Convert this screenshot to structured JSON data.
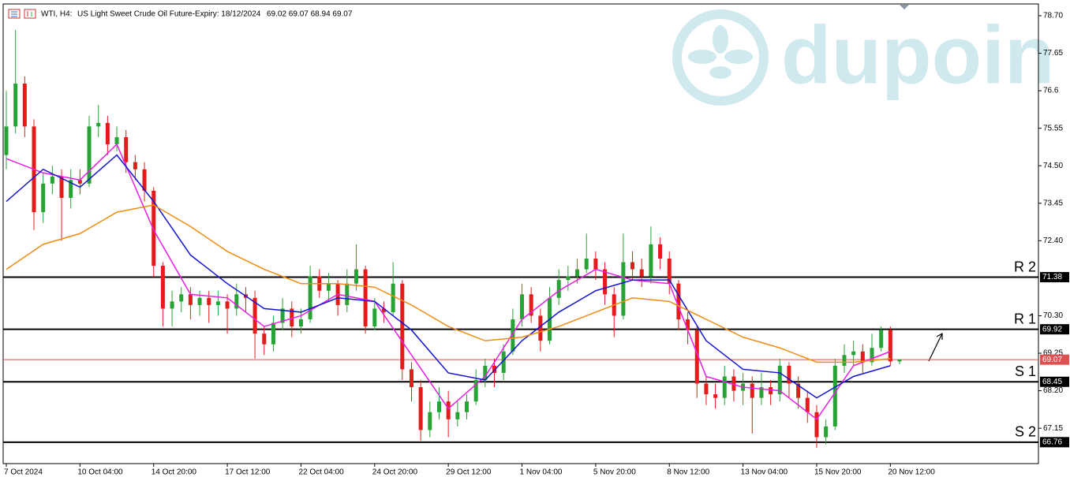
{
  "header": {
    "symbol": "WTI, H4:",
    "description": "US Light Sweet Crude Oil Future-Expiry: 18/12/2024",
    "ohlc": "69.02 69.07 68.94 69.07"
  },
  "watermark": "dupoin",
  "chart_data": {
    "type": "candlestick",
    "up_color": "#26a334",
    "down_color": "#e31b1b",
    "ylim": [
      66.16,
      79.03
    ],
    "yticks": [
      {
        "value": 78.7,
        "label": "78.70"
      },
      77.65,
      76.6,
      75.55,
      {
        "value": 74.5,
        "label": "74.50"
      },
      73.45,
      {
        "value": 72.4,
        "label": "72.40"
      },
      {
        "value": 70.3,
        "label": "70.30"
      },
      69.25,
      {
        "value": 68.2,
        "label": "68.20"
      },
      67.15
    ],
    "categories": [
      "7 Oct 2024",
      null,
      null,
      null,
      null,
      null,
      null,
      null,
      "10 Oct 04:00",
      null,
      null,
      null,
      null,
      null,
      null,
      null,
      "14 Oct 20:00",
      null,
      null,
      null,
      null,
      null,
      null,
      null,
      "17 Oct 12:00",
      null,
      null,
      null,
      null,
      null,
      null,
      null,
      "22 Oct 04:00",
      null,
      null,
      null,
      null,
      null,
      null,
      null,
      "24 Oct 20:00",
      null,
      null,
      null,
      null,
      null,
      null,
      null,
      "29 Oct 12:00",
      null,
      null,
      null,
      null,
      null,
      null,
      null,
      "1 Nov 04:00",
      null,
      null,
      null,
      null,
      null,
      null,
      null,
      "5 Nov 20:00",
      null,
      null,
      null,
      null,
      null,
      null,
      null,
      "8 Nov 12:00",
      null,
      null,
      null,
      null,
      null,
      null,
      null,
      "13 Nov 04:00",
      null,
      null,
      null,
      null,
      null,
      null,
      null,
      "15 Nov 20:00",
      null,
      null,
      null,
      null,
      null,
      null,
      null,
      "20 Nov 12:00",
      null
    ],
    "open": [
      74.8,
      75.6,
      76.8,
      75.6,
      73.2,
      74.0,
      74.2,
      73.6,
      74.1,
      74.0,
      75.6,
      75.7,
      75.1,
      75.3,
      74.6,
      74.4,
      73.8,
      71.7,
      70.5,
      70.7,
      70.9,
      70.6,
      70.8,
      70.6,
      70.7,
      70.5,
      70.9,
      70.8,
      69.8,
      69.5,
      70.1,
      70.5,
      70.0,
      70.2,
      71.4,
      71.0,
      71.2,
      70.6,
      71.2,
      71.6,
      70.0,
      70.5,
      70.4,
      71.2,
      68.8,
      68.3,
      67.1,
      67.6,
      67.9,
      67.4,
      67.6,
      67.9,
      68.5,
      68.9,
      68.7,
      69.3,
      70.2,
      70.9,
      70.3,
      69.6,
      70.8,
      71.3,
      71.4,
      71.6,
      71.9,
      71.6,
      70.9,
      70.3,
      71.8,
      71.6,
      71.4,
      72.3,
      71.9,
      71.2,
      70.2,
      69.9,
      68.4,
      68.1,
      68.0,
      68.6,
      68.2,
      68.4,
      68.0,
      68.3,
      68.1,
      68.9,
      68.4,
      68.0,
      67.6,
      66.9,
      67.2,
      68.9,
      69.2,
      69.3,
      69.0,
      69.4,
      69.9,
      69.02
    ],
    "high": [
      76.6,
      78.3,
      77.0,
      75.8,
      74.3,
      74.5,
      74.4,
      74.4,
      74.4,
      75.9,
      76.2,
      75.9,
      75.6,
      75.5,
      74.8,
      74.6,
      73.9,
      71.8,
      71.0,
      71.1,
      71.1,
      71.0,
      71.0,
      71.0,
      70.9,
      71.2,
      71.1,
      71.0,
      70.0,
      70.3,
      70.8,
      70.7,
      70.5,
      71.7,
      71.6,
      71.5,
      71.3,
      71.6,
      72.3,
      71.7,
      70.8,
      70.7,
      71.8,
      71.3,
      69.0,
      68.5,
      67.9,
      68.3,
      68.2,
      67.9,
      68.1,
      68.8,
      69.1,
      69.1,
      69.5,
      70.5,
      71.2,
      71.1,
      70.5,
      71.1,
      71.6,
      71.7,
      71.9,
      72.6,
      72.1,
      71.8,
      71.1,
      72.6,
      72.1,
      71.9,
      72.8,
      72.5,
      72.1,
      71.3,
      70.4,
      70.0,
      68.6,
      68.4,
      68.9,
      68.8,
      68.7,
      68.6,
      68.7,
      68.5,
      69.1,
      69.0,
      68.6,
      68.2,
      67.8,
      67.4,
      69.1,
      69.5,
      69.6,
      69.5,
      69.8,
      70.0,
      70.0,
      69.07
    ],
    "low": [
      74.4,
      75.4,
      75.3,
      72.7,
      72.9,
      73.7,
      72.4,
      73.3,
      73.7,
      73.9,
      75.3,
      74.8,
      74.9,
      74.3,
      74.1,
      73.5,
      71.4,
      70.0,
      70.0,
      70.4,
      70.2,
      70.3,
      70.1,
      70.3,
      69.8,
      70.3,
      70.4,
      69.1,
      69.2,
      69.3,
      69.9,
      69.7,
      69.8,
      70.1,
      70.8,
      70.7,
      70.3,
      70.4,
      71.0,
      69.8,
      69.9,
      70.1,
      70.3,
      68.5,
      67.9,
      66.8,
      66.9,
      67.4,
      66.9,
      67.2,
      67.4,
      67.8,
      68.3,
      68.3,
      68.5,
      69.2,
      70.0,
      70.1,
      69.3,
      69.5,
      70.6,
      71.0,
      71.2,
      71.5,
      71.3,
      70.6,
      69.7,
      70.2,
      71.3,
      71.1,
      71.2,
      71.6,
      70.9,
      69.9,
      69.5,
      68.0,
      67.8,
      67.7,
      67.8,
      67.9,
      67.8,
      67.0,
      67.8,
      67.8,
      67.9,
      68.0,
      67.7,
      67.3,
      66.6,
      66.7,
      67.1,
      68.7,
      68.9,
      68.7,
      68.9,
      69.3,
      68.9,
      68.94
    ],
    "close": [
      75.6,
      76.8,
      75.6,
      73.2,
      74.0,
      74.2,
      73.6,
      74.1,
      74.0,
      75.6,
      75.7,
      75.1,
      75.3,
      74.6,
      74.4,
      73.8,
      71.7,
      70.5,
      70.7,
      70.9,
      70.6,
      70.8,
      70.6,
      70.7,
      70.5,
      70.9,
      70.8,
      69.8,
      69.5,
      70.1,
      70.5,
      70.0,
      70.2,
      71.4,
      71.0,
      71.2,
      70.6,
      71.2,
      71.6,
      70.0,
      70.5,
      70.4,
      71.2,
      68.8,
      68.3,
      67.1,
      67.6,
      67.9,
      67.4,
      67.6,
      67.9,
      68.5,
      68.9,
      68.7,
      69.3,
      70.2,
      70.9,
      70.3,
      69.6,
      70.8,
      71.3,
      71.4,
      71.6,
      71.9,
      71.6,
      70.9,
      70.3,
      71.8,
      71.6,
      71.4,
      72.3,
      71.9,
      71.2,
      70.2,
      69.9,
      68.4,
      68.1,
      68.0,
      68.6,
      68.2,
      68.4,
      68.0,
      68.3,
      68.1,
      68.9,
      68.4,
      68.0,
      67.6,
      66.9,
      67.2,
      68.9,
      69.2,
      69.3,
      69.0,
      69.4,
      69.9,
      69.02,
      69.07
    ],
    "series": [
      {
        "color": "#e81ee8",
        "x": [
          0,
          4,
          8,
          12,
          16,
          20,
          24,
          28,
          32,
          36,
          40,
          44,
          48,
          52,
          56,
          60,
          64,
          68,
          72,
          76,
          80,
          84,
          88,
          92,
          96
        ],
        "values": [
          74.7,
          74.3,
          74.1,
          75.1,
          72.7,
          70.9,
          70.8,
          70.0,
          70.3,
          70.9,
          70.7,
          69.2,
          67.7,
          68.6,
          70.2,
          71.0,
          71.6,
          71.3,
          71.2,
          68.6,
          68.3,
          68.2,
          67.4,
          68.9,
          69.3
        ]
      },
      {
        "color": "#1414d2",
        "x": [
          0,
          4,
          8,
          12,
          16,
          20,
          24,
          28,
          32,
          36,
          40,
          44,
          48,
          52,
          56,
          60,
          64,
          68,
          72,
          76,
          80,
          84,
          88,
          92,
          96
        ],
        "values": [
          73.5,
          74.4,
          73.9,
          74.8,
          73.5,
          72.0,
          71.2,
          70.5,
          70.4,
          70.8,
          70.7,
          69.9,
          68.7,
          68.5,
          69.6,
          70.4,
          71.0,
          71.3,
          71.3,
          69.6,
          68.8,
          68.7,
          68.0,
          68.6,
          68.9
        ]
      },
      {
        "color": "#f08c14",
        "x": [
          0,
          4,
          8,
          12,
          16,
          20,
          24,
          28,
          32,
          36,
          40,
          44,
          48,
          52,
          56,
          60,
          64,
          68,
          72,
          76,
          80,
          84,
          88,
          92,
          96
        ],
        "values": [
          71.6,
          72.3,
          72.6,
          73.2,
          73.4,
          72.8,
          72.1,
          71.6,
          71.2,
          71.2,
          71.1,
          70.6,
          70.0,
          69.6,
          69.7,
          70.0,
          70.4,
          70.8,
          70.7,
          70.2,
          69.7,
          69.4,
          69.0,
          69.0,
          69.1
        ]
      }
    ],
    "levels": [
      {
        "name": "R 2",
        "value": 71.38,
        "color": "#000000"
      },
      {
        "name": "R 1",
        "value": 69.92,
        "color": "#000000"
      },
      {
        "value": 69.07,
        "color": "#e05050"
      },
      {
        "name": "S 1",
        "value": 68.45,
        "color": "#000000"
      },
      {
        "name": "S 2",
        "value": 66.76,
        "color": "#000000"
      }
    ]
  }
}
